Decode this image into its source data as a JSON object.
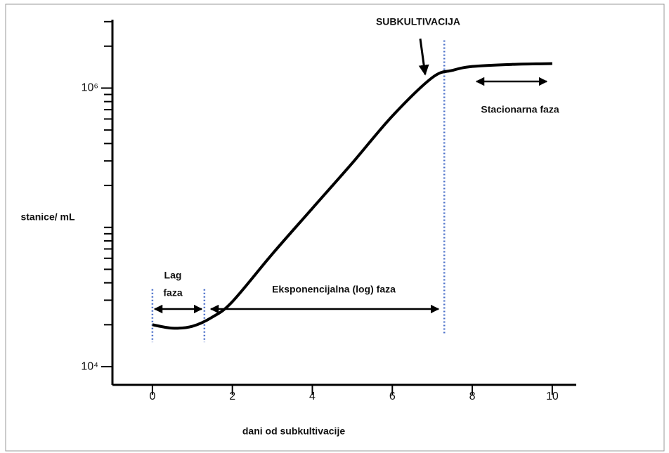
{
  "chart_data": {
    "type": "line",
    "xlabel": "dani od subkultivacije",
    "ylabel": "stanice/ mL",
    "x": [
      0,
      0.5,
      1,
      1.5,
      2,
      3,
      4,
      5,
      6,
      7,
      7.5,
      8,
      9,
      10
    ],
    "series": [
      {
        "color": "#000000",
        "values": [
          20000,
          18900,
          19500,
          22700,
          29300,
          64500,
          137000,
          290000,
          630000,
          1190000,
          1340000,
          1430000,
          1480000,
          1500000
        ]
      }
    ],
    "xlim": [
      -1,
      10.6
    ],
    "xticks": [
      0,
      2,
      4,
      6,
      8,
      10
    ],
    "ylim": [
      7400,
      3100000
    ],
    "log_y": true,
    "yticks": [
      {
        "value": 10000,
        "label": "10⁴"
      },
      {
        "value": 1000000,
        "label": "10⁶"
      }
    ],
    "yminor_ticks": [
      20000,
      30000,
      40000,
      50000,
      60000,
      70000,
      80000,
      90000,
      100000,
      200000,
      300000,
      400000,
      500000,
      600000,
      700000,
      800000,
      900000,
      2000000,
      3000000
    ],
    "phase_lines": [
      {
        "x": 0,
        "ylim": [
          15000,
          36000
        ]
      },
      {
        "x": 1.3,
        "ylim": [
          15000,
          36000
        ]
      },
      {
        "x": 7.3,
        "ylim": [
          17000,
          2200000
        ]
      }
    ],
    "phase_line_color": "#4a6fc9",
    "annotations": [
      {
        "text": "SUBKULTIVACIJA"
      },
      {
        "text": "Stacionarna faza"
      },
      {
        "lines": [
          "Lag",
          "faza"
        ]
      },
      {
        "text": "Eksponencijalna (log) faza"
      }
    ]
  }
}
